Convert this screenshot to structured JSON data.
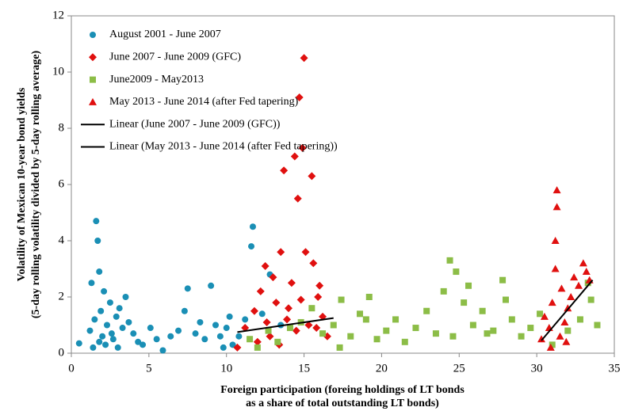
{
  "chart_data": {
    "type": "scatter",
    "x_label": [
      "Foreign participation (foreing holdings of LT bonds",
      "as a share of total outstanding LT bonds)"
    ],
    "y_label": [
      "Volatility of Mexican 10-year bond yields",
      "(5-day rolling volatility divided by 5-day rolling average)"
    ],
    "xlim": [
      0,
      35
    ],
    "xticks": [
      0,
      5,
      10,
      15,
      20,
      25,
      30,
      35
    ],
    "ylim": [
      0,
      12
    ],
    "yticks": [
      0,
      2,
      4,
      6,
      8,
      10,
      12
    ],
    "legend": "top-left",
    "series": [
      {
        "name": "August 2001 - June 2007",
        "color": "#1a8fb5",
        "marker": "circle",
        "x": [
          0.5,
          1.2,
          1.3,
          1.5,
          1.6,
          1.7,
          1.8,
          1.9,
          2.0,
          2.1,
          2.3,
          2.5,
          2.7,
          2.9,
          3.1,
          3.3,
          3.5,
          3.7,
          4.0,
          4.3,
          4.6,
          5.1,
          5.5,
          5.9,
          6.4,
          6.9,
          7.3,
          7.5,
          8.0,
          8.6,
          9.0,
          9.3,
          9.6,
          10.0,
          10.4,
          10.8,
          11.2,
          11.6,
          11.7,
          12.3,
          12.8,
          13.5,
          1.4,
          1.8,
          2.2,
          2.6,
          3.0,
          8.3,
          9.8,
          10.2
        ],
        "y": [
          0.35,
          0.8,
          2.5,
          1.2,
          4.7,
          4.0,
          2.9,
          1.5,
          0.6,
          2.2,
          1.0,
          1.8,
          0.5,
          1.3,
          1.6,
          0.9,
          2.0,
          1.1,
          0.7,
          0.4,
          0.3,
          0.9,
          0.5,
          0.1,
          0.6,
          0.8,
          1.5,
          2.3,
          0.7,
          0.5,
          2.4,
          1.0,
          0.6,
          0.9,
          0.3,
          0.6,
          1.2,
          3.8,
          4.5,
          1.4,
          2.8,
          1.0,
          0.2,
          0.4,
          0.3,
          0.7,
          0.2,
          1.1,
          0.2,
          1.3
        ]
      },
      {
        "name": "June 2007 - June 2009 (GFC)",
        "color": "#e0100f",
        "marker": "diamond",
        "x": [
          10.7,
          11.2,
          11.8,
          12.2,
          12.5,
          12.8,
          13.2,
          13.5,
          13.7,
          13.9,
          14.2,
          14.4,
          14.6,
          14.7,
          14.9,
          15.0,
          15.1,
          15.3,
          15.5,
          15.6,
          15.9,
          16.2,
          16.5,
          12.0,
          13.0,
          14.0,
          14.5,
          16.0,
          12.6,
          13.4,
          14.8,
          15.8
        ],
        "y": [
          0.2,
          0.9,
          1.5,
          2.2,
          3.1,
          0.6,
          1.8,
          3.6,
          6.5,
          1.2,
          2.5,
          7.0,
          5.5,
          9.1,
          7.3,
          10.5,
          3.6,
          1.0,
          6.3,
          3.2,
          2.0,
          1.3,
          0.6,
          0.4,
          2.7,
          1.6,
          0.8,
          2.4,
          1.1,
          0.3,
          1.9,
          0.9
        ]
      },
      {
        "name": "June2009 - May2013",
        "color": "#8cbd47",
        "marker": "square",
        "x": [
          11.5,
          12.0,
          12.7,
          13.3,
          14.1,
          14.8,
          15.5,
          16.2,
          16.9,
          17.4,
          18.0,
          18.6,
          19.2,
          19.7,
          20.3,
          20.9,
          21.5,
          22.2,
          22.9,
          23.5,
          24.0,
          24.4,
          24.8,
          25.3,
          25.9,
          26.5,
          27.2,
          27.8,
          28.4,
          29.0,
          29.6,
          30.2,
          31.0,
          32.0,
          32.8,
          33.5,
          33.9,
          17.3,
          19.0,
          24.6,
          25.6,
          26.8,
          28.0,
          33.3
        ],
        "y": [
          0.5,
          0.2,
          0.8,
          0.4,
          0.9,
          1.1,
          1.6,
          0.7,
          1.0,
          1.9,
          0.6,
          1.4,
          2.0,
          0.5,
          0.8,
          1.2,
          0.4,
          0.9,
          1.5,
          0.7,
          2.2,
          3.3,
          2.9,
          1.8,
          1.0,
          1.5,
          0.8,
          2.6,
          1.2,
          0.6,
          0.9,
          1.4,
          0.3,
          0.8,
          1.2,
          1.9,
          1.0,
          0.2,
          1.2,
          0.6,
          2.4,
          0.7,
          1.9,
          2.5
        ]
      },
      {
        "name": "May 2013 - June 2014 (after Fed tapering)",
        "color": "#e0100f",
        "marker": "triangle",
        "x": [
          30.3,
          30.5,
          30.8,
          31.0,
          31.2,
          31.3,
          31.3,
          31.2,
          31.5,
          31.6,
          31.8,
          32.0,
          32.2,
          32.4,
          32.7,
          33.0,
          33.2,
          33.4,
          30.9,
          31.9
        ],
        "y": [
          0.5,
          1.3,
          0.9,
          1.8,
          3.0,
          5.8,
          5.2,
          4.0,
          0.6,
          2.3,
          1.1,
          1.6,
          2.0,
          2.7,
          2.4,
          3.2,
          2.9,
          2.6,
          0.2,
          0.4
        ]
      },
      {
        "name": "Linear (June 2007 - June 2009 (GFC))",
        "color": "#000000",
        "marker": "line",
        "x": [
          10.7,
          16.9
        ],
        "y": [
          0.75,
          1.25
        ]
      },
      {
        "name": "Linear (May 2013 - June 2014 (after Fed tapering))",
        "color": "#000000",
        "marker": "line",
        "x": [
          30.3,
          33.6
        ],
        "y": [
          0.45,
          2.6
        ]
      }
    ]
  }
}
